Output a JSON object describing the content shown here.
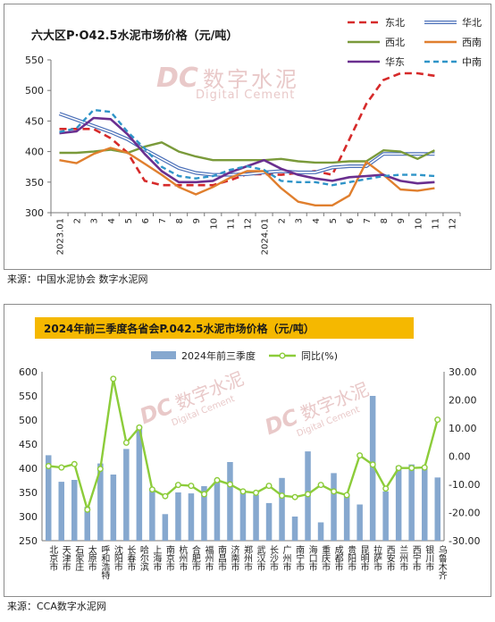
{
  "chart1": {
    "title": "六大区P·O42.5水泥市场价格（元/吨）",
    "source": "来源：中国水泥协会 数字水泥网",
    "watermark": {
      "cn": "数字水泥",
      "en": "Digital Cement",
      "logo": "DC"
    },
    "chart_data": {
      "type": "line",
      "ylim": [
        300,
        550
      ],
      "yticks": [
        "300",
        "350",
        "400",
        "450",
        "500",
        "550"
      ],
      "xticks": [
        "2023.01",
        "2",
        "3",
        "4",
        "5",
        "6",
        "7",
        "8",
        "9",
        "10",
        "11",
        "12",
        "2024.01",
        "2",
        "3",
        "4",
        "5",
        "6",
        "7",
        "8",
        "9",
        "10",
        "11",
        "12"
      ],
      "legend_position": "top-right",
      "series": [
        {
          "name": "东北",
          "color": "#d62a2a",
          "dash": "8,5",
          "width": 2.6,
          "values": [
            437,
            437,
            437,
            422,
            398,
            352,
            345,
            345,
            345,
            345,
            353,
            363,
            363,
            362,
            365,
            368,
            362,
            420,
            478,
            517,
            528,
            528,
            524,
            null
          ]
        },
        {
          "name": "华北",
          "color": "#4a6fb8",
          "double": true,
          "width": 1.8,
          "values": [
            462,
            452,
            442,
            432,
            420,
            403,
            388,
            373,
            365,
            362,
            362,
            363,
            366,
            368,
            366,
            366,
            374,
            376,
            376,
            396,
            396,
            396,
            396,
            null
          ]
        },
        {
          "name": "西北",
          "color": "#7a9a3a",
          "dash": "",
          "width": 2.4,
          "values": [
            398,
            398,
            400,
            403,
            398,
            408,
            415,
            400,
            392,
            386,
            386,
            386,
            386,
            388,
            384,
            382,
            382,
            384,
            384,
            402,
            400,
            388,
            402,
            null
          ]
        },
        {
          "name": "西南",
          "color": "#e07f2e",
          "dash": "",
          "width": 2.4,
          "values": [
            386,
            381,
            396,
            406,
            398,
            380,
            362,
            342,
            330,
            342,
            357,
            368,
            368,
            340,
            318,
            312,
            312,
            328,
            383,
            362,
            338,
            336,
            340,
            null
          ]
        },
        {
          "name": "华东",
          "color": "#6a2f8f",
          "dash": "",
          "width": 2.6,
          "values": [
            430,
            433,
            455,
            453,
            428,
            396,
            368,
            350,
            350,
            352,
            366,
            376,
            386,
            372,
            362,
            356,
            352,
            358,
            360,
            362,
            352,
            348,
            350,
            null
          ]
        },
        {
          "name": "中南",
          "color": "#2f94c8",
          "dash": "6,4",
          "width": 2.4,
          "values": [
            432,
            438,
            468,
            465,
            432,
            405,
            375,
            360,
            356,
            360,
            370,
            376,
            370,
            352,
            350,
            350,
            345,
            350,
            355,
            360,
            362,
            362,
            360,
            null
          ]
        }
      ]
    }
  },
  "chart2": {
    "title": "2024年前三季度各省会P.042.5水泥市场价格（元/吨）",
    "source": "来源：CCA数字水泥网",
    "watermark": {
      "cn": "数字水泥",
      "en": "Digital Cement",
      "logo": "DC"
    },
    "chart_data": {
      "type": "bar",
      "categories": [
        "北京市",
        "天津市",
        "石家庄",
        "太原市",
        "呼和浩特",
        "沈阳市",
        "长春市",
        "哈尔滨",
        "上海市",
        "南京市",
        "杭州市",
        "合肥市",
        "福州市",
        "南昌市",
        "济南市",
        "郑州市",
        "武汉市",
        "长沙市",
        "广州市",
        "南宁市",
        "海口市",
        "重庆市",
        "成都市",
        "贵阳市",
        "昆明市",
        "拉萨市",
        "西安市",
        "兰州市",
        "西宁市",
        "银川市",
        "乌鲁木齐"
      ],
      "series": [
        {
          "name": "2024年前三季度",
          "type": "bar",
          "axis": "left",
          "color": "#86a8cf",
          "values": [
            427,
            372,
            376,
            320,
            410,
            387,
            440,
            488,
            358,
            305,
            350,
            348,
            363,
            375,
            413,
            350,
            345,
            328,
            380,
            300,
            435,
            288,
            390,
            343,
            325,
            550,
            352,
            405,
            408,
            401,
            381
          ]
        },
        {
          "name": "同比(%)",
          "type": "line",
          "axis": "right",
          "color": "#8ccc3a",
          "values": [
            -3.5,
            -4.0,
            -2.8,
            -19.0,
            -4.5,
            27.5,
            4.8,
            10.2,
            -11.8,
            -14.2,
            -10.2,
            -10.5,
            -13.5,
            -8.5,
            -10.0,
            -12.5,
            -13.0,
            -10.5,
            -14.0,
            -14.5,
            -13.5,
            -10.2,
            -12.5,
            -13.8,
            0.3,
            -3.0,
            -11.5,
            -4.2,
            -4.2,
            -4.0,
            13.0
          ]
        }
      ],
      "ylim_left": [
        250,
        600
      ],
      "yticks_left": [
        "250",
        "300",
        "350",
        "400",
        "450",
        "500",
        "550",
        "600"
      ],
      "ylim_right": [
        -30,
        30
      ],
      "yticks_right": [
        "-30.00",
        "-20.00",
        "-10.00",
        "0.00",
        "10.00",
        "20.00",
        "30.00"
      ],
      "legend_position": "top"
    }
  }
}
